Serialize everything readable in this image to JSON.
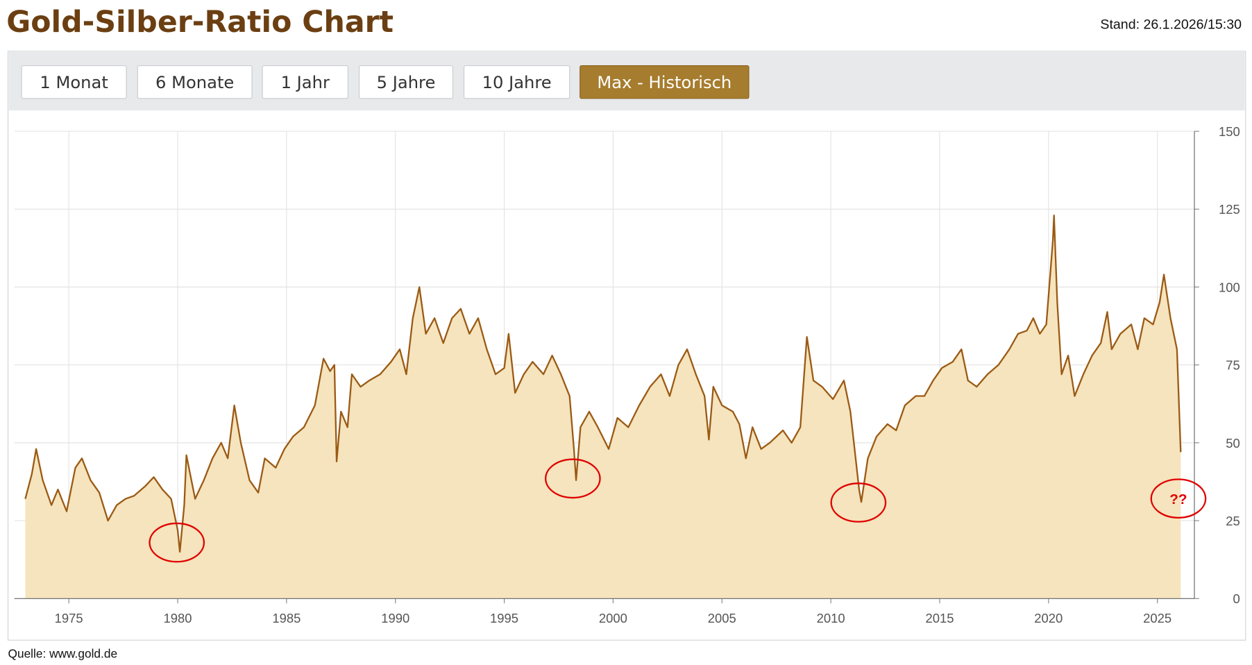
{
  "header": {
    "title": "Gold-Silber-Ratio Chart",
    "stand": "Stand: 26.1.2026/15:30"
  },
  "buttons": [
    "1 Monat",
    "6 Monate",
    "1 Jahr",
    "5 Jahre",
    "10 Jahre",
    "Max - Historisch"
  ],
  "source": "Quelle: www.gold.de",
  "chart_data": {
    "type": "area",
    "annotations": [
      "??"
    ],
    "xlim": [
      1972.5,
      2026.7
    ],
    "ylim": [
      0,
      150
    ],
    "xticks": [
      1975,
      1980,
      1985,
      1990,
      1995,
      2000,
      2005,
      2010,
      2015,
      2020,
      2025
    ],
    "yticks": [
      0,
      25,
      50,
      75,
      100,
      125,
      150
    ],
    "grid": true,
    "series": [
      {
        "color": "#9b5a14",
        "fill": "#f5e4bd",
        "x": [
          1973.0,
          1973.3,
          1973.5,
          1973.8,
          1974.2,
          1974.5,
          1974.9,
          1975.3,
          1975.6,
          1976.0,
          1976.4,
          1976.8,
          1977.2,
          1977.6,
          1978.0,
          1978.5,
          1978.9,
          1979.3,
          1979.7,
          1980.0,
          1980.1,
          1980.3,
          1980.4,
          1980.8,
          1981.2,
          1981.6,
          1982.0,
          1982.3,
          1982.6,
          1982.9,
          1983.3,
          1983.7,
          1984.0,
          1984.5,
          1984.9,
          1985.3,
          1985.8,
          1986.3,
          1986.7,
          1987.0,
          1987.2,
          1987.3,
          1987.5,
          1987.8,
          1988.0,
          1988.4,
          1988.8,
          1989.3,
          1989.8,
          1990.2,
          1990.5,
          1990.8,
          1991.1,
          1991.4,
          1991.8,
          1992.2,
          1992.6,
          1993.0,
          1993.4,
          1993.8,
          1994.2,
          1994.6,
          1995.0,
          1995.2,
          1995.5,
          1995.9,
          1996.3,
          1996.8,
          1997.2,
          1997.6,
          1998.0,
          1998.2,
          1998.3,
          1998.5,
          1998.9,
          1999.3,
          1999.8,
          2000.2,
          2000.7,
          2001.2,
          2001.7,
          2002.2,
          2002.6,
          2003.0,
          2003.4,
          2003.8,
          2004.2,
          2004.4,
          2004.6,
          2005.0,
          2005.5,
          2005.8,
          2006.1,
          2006.4,
          2006.8,
          2007.2,
          2007.8,
          2008.2,
          2008.6,
          2008.9,
          2009.2,
          2009.6,
          2010.1,
          2010.6,
          2010.9,
          2011.3,
          2011.4,
          2011.7,
          2012.1,
          2012.6,
          2013.0,
          2013.4,
          2013.9,
          2014.3,
          2014.7,
          2015.1,
          2015.6,
          2016.0,
          2016.3,
          2016.7,
          2017.2,
          2017.7,
          2018.2,
          2018.6,
          2019.0,
          2019.3,
          2019.6,
          2019.9,
          2020.2,
          2020.25,
          2020.4,
          2020.6,
          2020.9,
          2021.2,
          2021.6,
          2022.0,
          2022.4,
          2022.7,
          2022.9,
          2023.3,
          2023.8,
          2024.1,
          2024.4,
          2024.8,
          2025.1,
          2025.3,
          2025.6,
          2025.9,
          2026.07
        ],
        "values": [
          32,
          40,
          48,
          38,
          30,
          35,
          28,
          42,
          45,
          38,
          34,
          25,
          30,
          32,
          33,
          36,
          39,
          35,
          32,
          22,
          15,
          30,
          46,
          32,
          38,
          45,
          50,
          45,
          62,
          50,
          38,
          34,
          45,
          42,
          48,
          52,
          55,
          62,
          77,
          73,
          75,
          44,
          60,
          55,
          72,
          68,
          70,
          72,
          76,
          80,
          72,
          90,
          100,
          85,
          90,
          82,
          90,
          93,
          85,
          90,
          80,
          72,
          74,
          85,
          66,
          72,
          76,
          72,
          78,
          72,
          65,
          48,
          38,
          55,
          60,
          55,
          48,
          58,
          55,
          62,
          68,
          72,
          65,
          75,
          80,
          72,
          65,
          51,
          68,
          62,
          60,
          56,
          45,
          55,
          48,
          50,
          54,
          50,
          55,
          84,
          70,
          68,
          64,
          70,
          60,
          35,
          31,
          45,
          52,
          56,
          54,
          62,
          65,
          65,
          70,
          74,
          76,
          80,
          70,
          68,
          72,
          75,
          80,
          85,
          86,
          90,
          85,
          88,
          115,
          123,
          95,
          72,
          78,
          65,
          72,
          78,
          82,
          92,
          80,
          85,
          88,
          80,
          90,
          88,
          95,
          104,
          90,
          80,
          47
        ]
      }
    ]
  }
}
